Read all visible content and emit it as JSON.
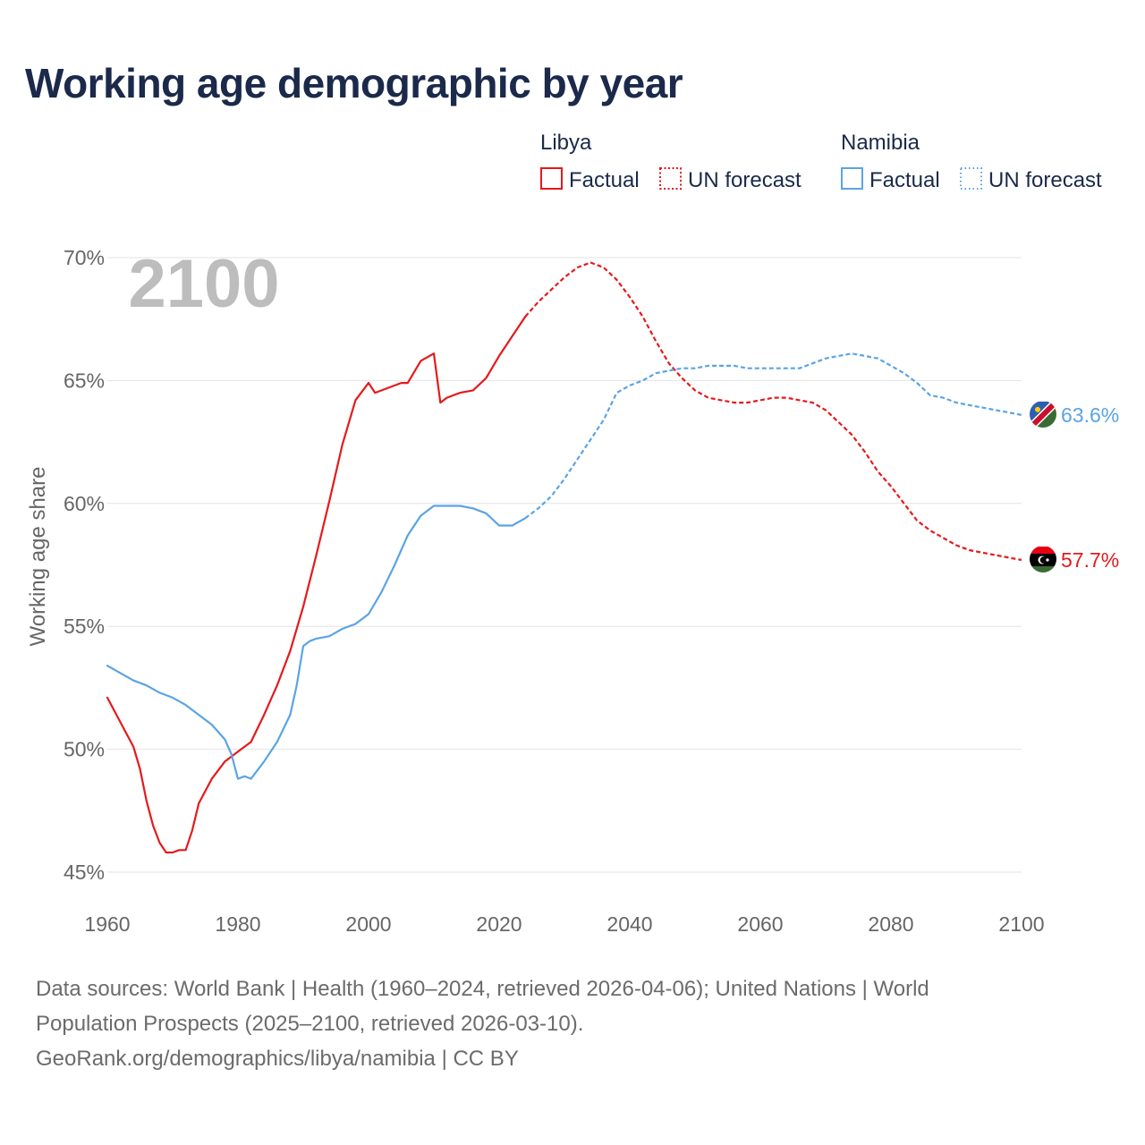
{
  "title": "Working age demographic by year",
  "year_label": "2100",
  "chart_data": {
    "type": "line",
    "title": "Working age demographic by year",
    "xlabel": "",
    "ylabel": "Working age share",
    "xlim": [
      1960,
      2100
    ],
    "ylim": [
      45,
      70
    ],
    "x_ticks": [
      1960,
      1980,
      2000,
      2020,
      2040,
      2060,
      2080,
      2100
    ],
    "y_ticks": [
      {
        "value": 45,
        "label": "45%"
      },
      {
        "value": 50,
        "label": "50%"
      },
      {
        "value": 55,
        "label": "55%"
      },
      {
        "value": 60,
        "label": "60%"
      },
      {
        "value": 65,
        "label": "65%"
      },
      {
        "value": 70,
        "label": "70%"
      }
    ],
    "grid": true,
    "legend": {
      "placement": "top-right",
      "factual_label": "Factual",
      "forecast_label": "UN forecast"
    },
    "series": [
      {
        "name": "Libya",
        "color": "#e41a1c",
        "end_label": "57.7%",
        "flag": "libya-flag-icon",
        "factual": {
          "x": [
            1960,
            1962,
            1964,
            1965,
            1966,
            1967,
            1968,
            1969,
            1970,
            1971,
            1972,
            1973,
            1974,
            1976,
            1978,
            1980,
            1982,
            1984,
            1986,
            1988,
            1990,
            1992,
            1994,
            1996,
            1998,
            2000,
            2001,
            2002,
            2004,
            2005,
            2006,
            2008,
            2010,
            2011,
            2012,
            2014,
            2016,
            2018,
            2020,
            2022,
            2024
          ],
          "y": [
            52.1,
            51.1,
            50.1,
            49.2,
            47.9,
            46.9,
            46.2,
            45.8,
            45.8,
            45.9,
            45.9,
            46.7,
            47.8,
            48.8,
            49.5,
            49.9,
            50.3,
            51.4,
            52.6,
            54.0,
            55.8,
            57.9,
            60.1,
            62.4,
            64.2,
            64.9,
            64.5,
            64.6,
            64.8,
            64.9,
            64.9,
            65.8,
            66.1,
            64.1,
            64.3,
            64.5,
            64.6,
            65.1,
            66.0,
            66.8,
            67.6
          ]
        },
        "forecast": {
          "x": [
            2024,
            2026,
            2028,
            2030,
            2032,
            2034,
            2036,
            2038,
            2040,
            2042,
            2044,
            2046,
            2048,
            2050,
            2052,
            2054,
            2056,
            2058,
            2060,
            2062,
            2064,
            2066,
            2068,
            2070,
            2072,
            2074,
            2076,
            2078,
            2080,
            2082,
            2084,
            2086,
            2088,
            2090,
            2092,
            2094,
            2096,
            2098,
            2100
          ],
          "y": [
            67.6,
            68.2,
            68.7,
            69.2,
            69.6,
            69.8,
            69.6,
            69.1,
            68.4,
            67.6,
            66.6,
            65.7,
            65.1,
            64.6,
            64.3,
            64.2,
            64.1,
            64.1,
            64.2,
            64.3,
            64.3,
            64.2,
            64.1,
            63.8,
            63.3,
            62.8,
            62.1,
            61.3,
            60.7,
            60.0,
            59.3,
            58.9,
            58.6,
            58.3,
            58.1,
            58.0,
            57.9,
            57.8,
            57.7
          ]
        }
      },
      {
        "name": "Namibia",
        "color": "#5aa4e4",
        "end_label": "63.6%",
        "flag": "namibia-flag-icon",
        "factual": {
          "x": [
            1960,
            1962,
            1964,
            1966,
            1968,
            1970,
            1972,
            1974,
            1976,
            1978,
            1979,
            1980,
            1981,
            1982,
            1984,
            1986,
            1988,
            1989,
            1990,
            1991,
            1992,
            1994,
            1996,
            1998,
            2000,
            2002,
            2004,
            2006,
            2008,
            2010,
            2012,
            2014,
            2016,
            2018,
            2020,
            2022,
            2024
          ],
          "y": [
            53.4,
            53.1,
            52.8,
            52.6,
            52.3,
            52.1,
            51.8,
            51.4,
            51.0,
            50.4,
            49.8,
            48.8,
            48.9,
            48.8,
            49.5,
            50.3,
            51.4,
            52.6,
            54.2,
            54.4,
            54.5,
            54.6,
            54.9,
            55.1,
            55.5,
            56.4,
            57.5,
            58.7,
            59.5,
            59.9,
            59.9,
            59.9,
            59.8,
            59.6,
            59.1,
            59.1,
            59.4
          ]
        },
        "forecast": {
          "x": [
            2024,
            2026,
            2028,
            2030,
            2032,
            2034,
            2036,
            2038,
            2040,
            2042,
            2044,
            2046,
            2048,
            2050,
            2052,
            2054,
            2056,
            2058,
            2060,
            2062,
            2064,
            2066,
            2068,
            2070,
            2072,
            2074,
            2076,
            2078,
            2080,
            2082,
            2084,
            2086,
            2088,
            2090,
            2092,
            2094,
            2096,
            2098,
            2100
          ],
          "y": [
            59.4,
            59.8,
            60.3,
            61.0,
            61.8,
            62.6,
            63.4,
            64.5,
            64.8,
            65.0,
            65.3,
            65.4,
            65.5,
            65.5,
            65.6,
            65.6,
            65.6,
            65.5,
            65.5,
            65.5,
            65.5,
            65.5,
            65.7,
            65.9,
            66.0,
            66.1,
            66.0,
            65.9,
            65.6,
            65.3,
            64.9,
            64.4,
            64.3,
            64.1,
            64.0,
            63.9,
            63.8,
            63.7,
            63.6
          ]
        }
      }
    ]
  },
  "sources": {
    "line1": "Data sources: World Bank | Health (1960–2024, retrieved 2026-04-06); United Nations | World",
    "line2": "Population Prospects (2025–2100, retrieved 2026-03-10).",
    "line3": "GeoRank.org/demographics/libya/namibia | CC BY"
  }
}
